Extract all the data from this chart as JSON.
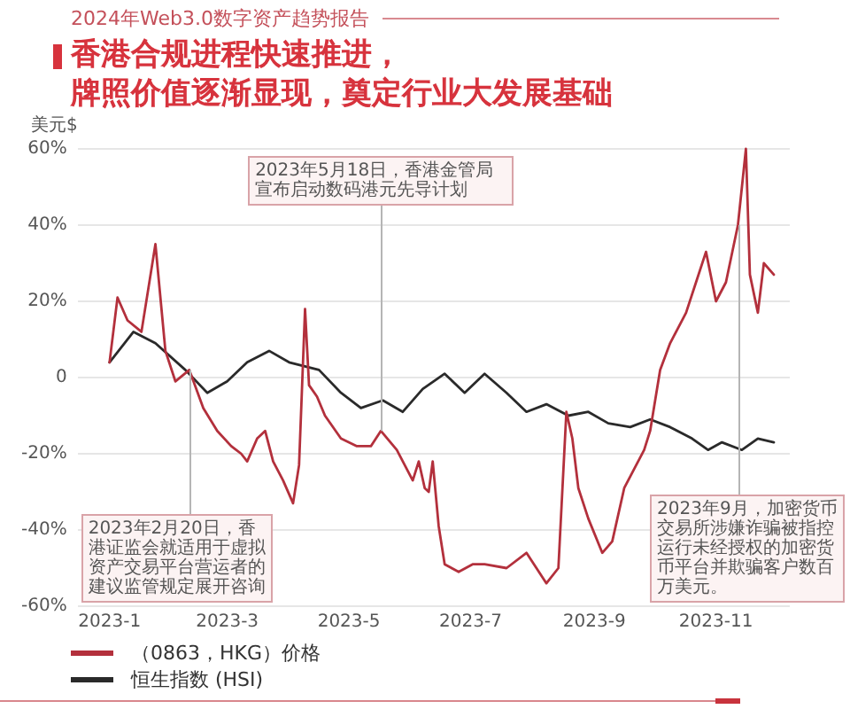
{
  "chart_data": {
    "type": "line",
    "title": "香港合规进程快速推进，牌照价值逐渐显现，奠定行业大发展基础",
    "subtitle": "2024年Web3.0数字资产趋势报告",
    "ylabel": "美元$",
    "series": [
      {
        "name": "（0863，HKG）价格",
        "color": "#b3303c",
        "x": [
          "2023-01-01",
          "2023-01-05",
          "2023-01-10",
          "2023-01-17",
          "2023-01-24",
          "2023-01-29",
          "2023-02-03",
          "2023-02-10",
          "2023-02-17",
          "2023-02-24",
          "2023-03-03",
          "2023-03-08",
          "2023-03-11",
          "2023-03-16",
          "2023-03-20",
          "2023-03-24",
          "2023-03-29",
          "2023-04-03",
          "2023-04-06",
          "2023-04-09",
          "2023-04-11",
          "2023-04-15",
          "2023-04-19",
          "2023-04-27",
          "2023-05-05",
          "2023-05-12",
          "2023-05-17",
          "2023-05-25",
          "2023-06-02",
          "2023-06-05",
          "2023-06-08",
          "2023-06-10",
          "2023-06-12",
          "2023-06-15",
          "2023-06-18",
          "2023-06-25",
          "2023-07-02",
          "2023-07-08",
          "2023-07-19",
          "2023-07-29",
          "2023-08-08",
          "2023-08-14",
          "2023-08-18",
          "2023-08-21",
          "2023-08-24",
          "2023-08-29",
          "2023-09-05",
          "2023-09-10",
          "2023-09-16",
          "2023-09-21",
          "2023-09-26",
          "2023-09-29",
          "2023-10-04",
          "2023-10-09",
          "2023-10-17",
          "2023-10-22",
          "2023-10-27",
          "2023-11-01",
          "2023-11-06",
          "2023-11-12",
          "2023-11-16",
          "2023-11-18",
          "2023-11-22",
          "2023-11-25",
          "2023-11-30"
        ],
        "values": [
          4,
          21,
          15,
          12,
          35,
          7,
          -1,
          2,
          -8,
          -14,
          -18,
          -20,
          -22,
          -16,
          -14,
          -22,
          -27,
          -33,
          -23,
          18,
          -2,
          -5,
          -10,
          -16,
          -18,
          -18,
          -14,
          -19,
          -27,
          -22,
          -29,
          -30,
          -22,
          -39,
          -49,
          -51,
          -49,
          -49,
          -50,
          -46,
          -54,
          -50,
          -9,
          -16,
          -29,
          -37,
          -46,
          -43,
          -29,
          -24,
          -19,
          -14,
          2,
          9,
          17,
          25,
          33,
          20,
          25,
          40,
          60,
          27,
          17,
          30,
          27
        ]
      },
      {
        "name": "恒生指数 (HSI)",
        "color": "#2a2a2a",
        "x": [
          "2023-01-01",
          "2023-01-13",
          "2023-01-24",
          "2023-02-08",
          "2023-02-19",
          "2023-03-01",
          "2023-03-11",
          "2023-03-22",
          "2023-04-01",
          "2023-04-16",
          "2023-04-27",
          "2023-05-07",
          "2023-05-18",
          "2023-05-28",
          "2023-06-07",
          "2023-06-18",
          "2023-06-28",
          "2023-07-08",
          "2023-07-19",
          "2023-07-29",
          "2023-08-08",
          "2023-08-19",
          "2023-08-29",
          "2023-09-08",
          "2023-09-19",
          "2023-09-29",
          "2023-10-09",
          "2023-10-20",
          "2023-10-28",
          "2023-11-04",
          "2023-11-14",
          "2023-11-22",
          "2023-11-30"
        ],
        "values": [
          4,
          12,
          9,
          2,
          -4,
          -1,
          4,
          7,
          4,
          2,
          -4,
          -8,
          -6,
          -9,
          -3,
          1,
          -4,
          1,
          -4,
          -9,
          -7,
          -10,
          -9,
          -12,
          -13,
          -11,
          -13,
          -16,
          -19,
          -17,
          -19,
          -16,
          -17
        ]
      }
    ],
    "xlim": [
      "2022-12-16",
      "2023-12-08"
    ],
    "xticks": [
      {
        "value": "2023-01",
        "label": "2023-1"
      },
      {
        "value": "2023-03",
        "label": "2023-3"
      },
      {
        "value": "2023-05",
        "label": "2023-5"
      },
      {
        "value": "2023-07",
        "label": "2023-7"
      },
      {
        "value": "2023-09",
        "label": "2023-9"
      },
      {
        "value": "2023-11",
        "label": "2023-11"
      }
    ],
    "ylim": [
      -60,
      60
    ],
    "yticks": [
      {
        "value": -60,
        "label": "-60%"
      },
      {
        "value": -40,
        "label": "-40%"
      },
      {
        "value": -20,
        "label": "-20%"
      },
      0,
      {
        "value": 20,
        "label": "20%"
      },
      {
        "value": 40,
        "label": "40%"
      },
      {
        "value": 60,
        "label": "60%"
      }
    ],
    "grid": "y",
    "legend": "bottom left",
    "marker": "none",
    "line_style": "solid",
    "annotations": [
      {
        "text": "2023年2月20日，香港证监会就适用于虚拟资产交易平台营运者的建议监管规定展开咨询",
        "x": "2023-02-10",
        "y": 2
      },
      {
        "text": "2023年5月18日，香港金管局宣布启动数码港元先导计划",
        "x": "2023-05-17",
        "y": -14
      },
      {
        "text": "2023年9月，加密货币交易所涉嫌诈骗被指控运行未经授权的加密货币平台并欺骗客户数百万美元。",
        "x": "2023-11-12",
        "y": 40
      }
    ]
  }
}
